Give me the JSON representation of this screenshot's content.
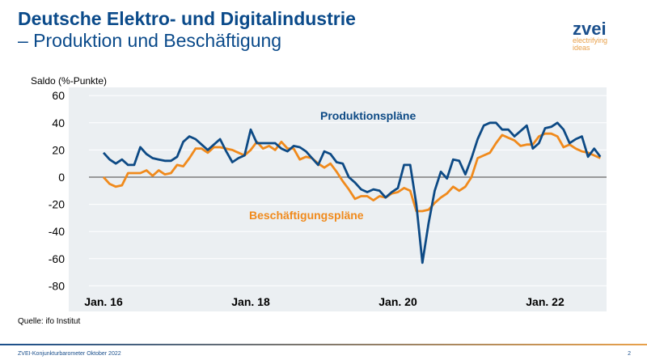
{
  "title": {
    "line1": "Deutsche Elektro- und Digitalindustrie",
    "line2": "– Produktion und Beschäftigung"
  },
  "logo": {
    "name": "zvei",
    "tagline1": "electrifying",
    "tagline2": "ideas"
  },
  "source": "Quelle: ifo Institut",
  "footer": {
    "text": "ZVEI-Konjunkturbarometer Oktober 2022",
    "page": "2"
  },
  "colors": {
    "produktion": "#0d4a85",
    "beschaeftigung": "#f08a1c",
    "plot_bg": "#ebeff2"
  },
  "chart_data": {
    "type": "line",
    "ylabel": "Saldo (%-Punkte)",
    "ylim": [
      -80,
      60
    ],
    "yticks": [
      "60",
      "40",
      "20",
      "0",
      "-20",
      "-40",
      "-60",
      "-80"
    ],
    "xticks": [
      "Jan. 16",
      "Jan. 18",
      "Jan. 20",
      "Jan. 22"
    ],
    "x_start": "2016-01",
    "x_end": "2022-10",
    "x_frequency": "monthly",
    "grid": true,
    "series": [
      {
        "name": "Produktionspläne",
        "values": [
          18,
          13,
          10,
          13,
          9,
          9,
          22,
          17,
          14,
          13,
          12,
          12,
          15,
          26,
          30,
          28,
          24,
          20,
          24,
          28,
          19,
          11,
          14,
          16,
          35,
          25,
          25,
          25,
          25,
          21,
          19,
          23,
          22,
          19,
          14,
          9,
          19,
          17,
          11,
          10,
          0,
          -4,
          -9,
          -11,
          -9,
          -10,
          -15,
          -11,
          -8,
          9,
          9,
          -20,
          -63,
          -34,
          -10,
          4,
          -1,
          13,
          12,
          2,
          14,
          28,
          38,
          40,
          40,
          35,
          35,
          30,
          34,
          38,
          21,
          25,
          36,
          37,
          40,
          35,
          25,
          28,
          30,
          15,
          21,
          15
        ]
      },
      {
        "name": "Beschäftigungspläne",
        "values": [
          0,
          -5,
          -7,
          -6,
          3,
          3,
          3,
          5,
          1,
          5,
          2,
          3,
          9,
          8,
          14,
          21,
          21,
          18,
          22,
          22,
          21,
          20,
          18,
          16,
          20,
          26,
          21,
          23,
          20,
          26,
          21,
          21,
          13,
          15,
          14,
          10,
          7,
          10,
          4,
          -3,
          -9,
          -16,
          -14,
          -14,
          -17,
          -14,
          -15,
          -12,
          -11,
          -8,
          -10,
          -25,
          -25,
          -24,
          -19,
          -15,
          -12,
          -7,
          -10,
          -7,
          0,
          14,
          16,
          18,
          25,
          31,
          29,
          27,
          23,
          24,
          24,
          30,
          32,
          32,
          30,
          22,
          24,
          21,
          19,
          18,
          16,
          14
        ]
      }
    ]
  }
}
